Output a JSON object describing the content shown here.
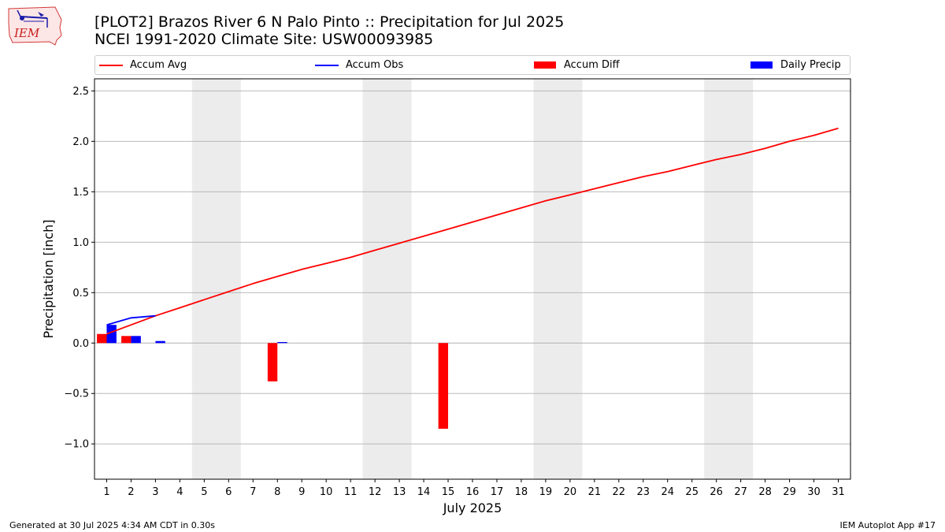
{
  "header": {
    "logo_text": "IEM",
    "title_line1": "[PLOT2] Brazos River 6 N Palo Pinto :: Precipitation for Jul 2025",
    "title_line2": "NCEI 1991-2020 Climate Site: USW00093985"
  },
  "footer": {
    "generated": "Generated at 30 Jul 2025 4:34 AM CDT in 0.30s",
    "app": "IEM Autoplot App #17"
  },
  "colors": {
    "accum_avg": "#ff0000",
    "accum_obs": "#0000ff",
    "accum_diff": "#ff0000",
    "daily_precip": "#0000ff",
    "weekend_shade": "#ececec",
    "grid": "#b0b0b0"
  },
  "chart_data": {
    "type": "bar",
    "title": "[PLOT2] Brazos River 6 N Palo Pinto :: Precipitation for Jul 2025",
    "subtitle": "NCEI 1991-2020 Climate Site: USW00093985",
    "xlabel": "July 2025",
    "ylabel": "Precipitation [inch]",
    "xlim": [
      0.5,
      31.5
    ],
    "ylim": [
      -1.35,
      2.62
    ],
    "yticks": [
      -1.0,
      -0.5,
      0.0,
      0.5,
      1.0,
      1.5,
      2.0,
      2.5
    ],
    "ytick_labels": [
      "−1.0",
      "−0.5",
      "0.0",
      "0.5",
      "1.0",
      "1.5",
      "2.0",
      "2.5"
    ],
    "grid": "horizontal",
    "legend_position": "top",
    "legend": [
      "Accum Avg",
      "Accum Obs",
      "Accum Diff",
      "Daily Precip"
    ],
    "days": [
      1,
      2,
      3,
      4,
      5,
      6,
      7,
      8,
      9,
      10,
      11,
      12,
      13,
      14,
      15,
      16,
      17,
      18,
      19,
      20,
      21,
      22,
      23,
      24,
      25,
      26,
      27,
      28,
      29,
      30,
      31
    ],
    "weekend_spans": [
      [
        5,
        6
      ],
      [
        12,
        13
      ],
      [
        19,
        20
      ],
      [
        26,
        27
      ]
    ],
    "series": [
      {
        "name": "Accum Avg",
        "type": "line",
        "x": [
          1,
          2,
          3,
          4,
          5,
          6,
          7,
          8,
          9,
          10,
          11,
          12,
          13,
          14,
          15,
          16,
          17,
          18,
          19,
          20,
          21,
          22,
          23,
          24,
          25,
          26,
          27,
          28,
          29,
          30,
          31
        ],
        "values": [
          0.09,
          0.18,
          0.27,
          0.35,
          0.43,
          0.51,
          0.59,
          0.66,
          0.73,
          0.79,
          0.85,
          0.92,
          0.99,
          1.06,
          1.13,
          1.2,
          1.27,
          1.34,
          1.41,
          1.47,
          1.53,
          1.59,
          1.65,
          1.7,
          1.76,
          1.82,
          1.87,
          1.93,
          2.0,
          2.06,
          2.13
        ]
      },
      {
        "name": "Accum Obs",
        "type": "line",
        "x": [
          1,
          2,
          3
        ],
        "values": [
          0.18,
          0.25,
          0.27
        ]
      },
      {
        "name": "Accum Diff",
        "type": "bar",
        "x": [
          1,
          2,
          8,
          15
        ],
        "values": [
          0.09,
          0.07,
          -0.38,
          -0.85
        ]
      },
      {
        "name": "Daily Precip",
        "type": "bar",
        "x": [
          1,
          2,
          3,
          8
        ],
        "values": [
          0.18,
          0.07,
          0.02,
          0.01
        ]
      }
    ]
  }
}
